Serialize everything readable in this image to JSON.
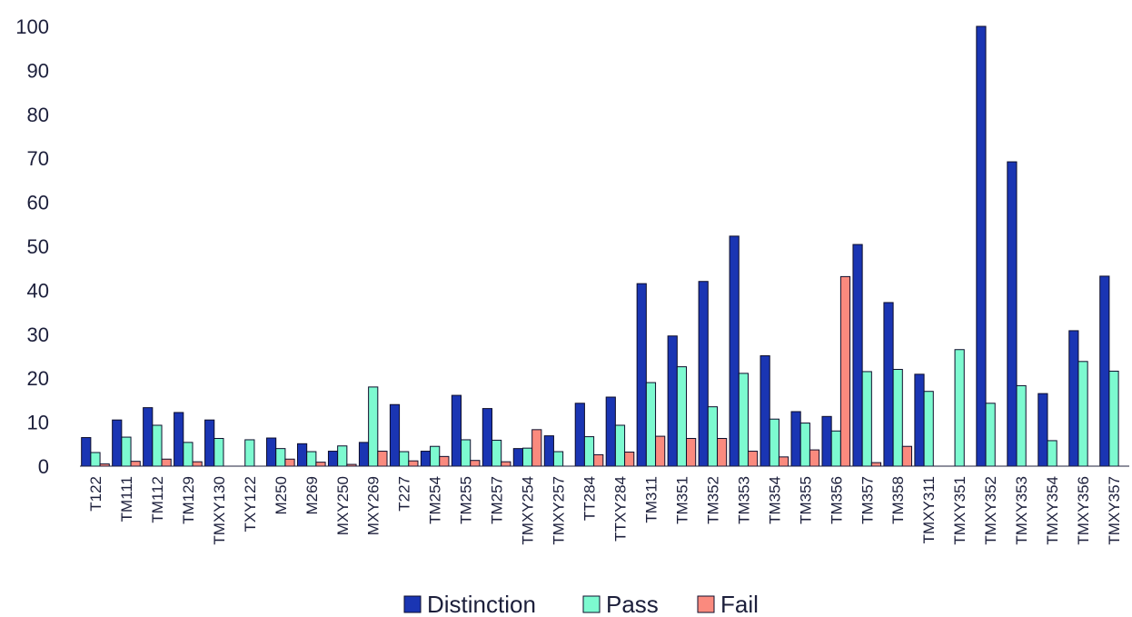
{
  "chart_data": {
    "type": "bar",
    "title": "",
    "xlabel": "",
    "ylabel": "",
    "ylim": [
      0,
      100
    ],
    "yticks": [
      0,
      10,
      20,
      30,
      40,
      50,
      60,
      70,
      80,
      90,
      100
    ],
    "grid": false,
    "legend_position": "bottom",
    "categories": [
      "T122",
      "TM111",
      "TM112",
      "TM129",
      "TMXY130",
      "TXY122",
      "M250",
      "M269",
      "MXY250",
      "MXY269",
      "T227",
      "TM254",
      "TM255",
      "TM257",
      "TMXY254",
      "TMXY257",
      "TT284",
      "TTXY284",
      "TM311",
      "TM351",
      "TM352",
      "TM353",
      "TM354",
      "TM355",
      "TM356",
      "TM357",
      "TM358",
      "TMXY311",
      "TMXY351",
      "TMXY352",
      "TMXY353",
      "TMXY354",
      "TMXY356",
      "TMXY357"
    ],
    "series": [
      {
        "name": "Distinction",
        "color": "#1a35b3",
        "values": [
          6.5,
          10.5,
          13.3,
          12.2,
          10.5,
          0,
          6.4,
          5.1,
          3.4,
          5.4,
          14,
          3.4,
          16.1,
          13.1,
          4,
          6.9,
          14.3,
          15.7,
          41.5,
          29.6,
          42,
          52.3,
          25.1,
          12.4,
          11.3,
          50.4,
          37.2,
          20.9,
          0,
          100,
          69.2,
          16.5,
          30.8,
          43.2
        ]
      },
      {
        "name": "Pass",
        "color": "#7dfad0",
        "values": [
          3.1,
          6.6,
          9.3,
          5.4,
          6.3,
          6,
          4,
          3.3,
          4.6,
          18,
          3.3,
          4.5,
          6,
          5.9,
          4.1,
          3.3,
          6.7,
          9.3,
          19,
          22.6,
          13.5,
          21.1,
          10.7,
          9.8,
          8,
          21.5,
          22,
          17,
          26.5,
          14.3,
          18.3,
          5.8,
          23.8,
          21.6
        ]
      },
      {
        "name": "Fail",
        "color": "#fa8a7e",
        "values": [
          0.5,
          1.1,
          1.6,
          1,
          0,
          0,
          1.6,
          0.9,
          0.4,
          3.4,
          1.2,
          2.2,
          1.3,
          1,
          8.3,
          0,
          2.6,
          3.2,
          6.8,
          6.3,
          6.3,
          3.4,
          2.1,
          3.7,
          43.1,
          0.8,
          4.5,
          0,
          0,
          0,
          0,
          0,
          0,
          0
        ]
      }
    ]
  }
}
